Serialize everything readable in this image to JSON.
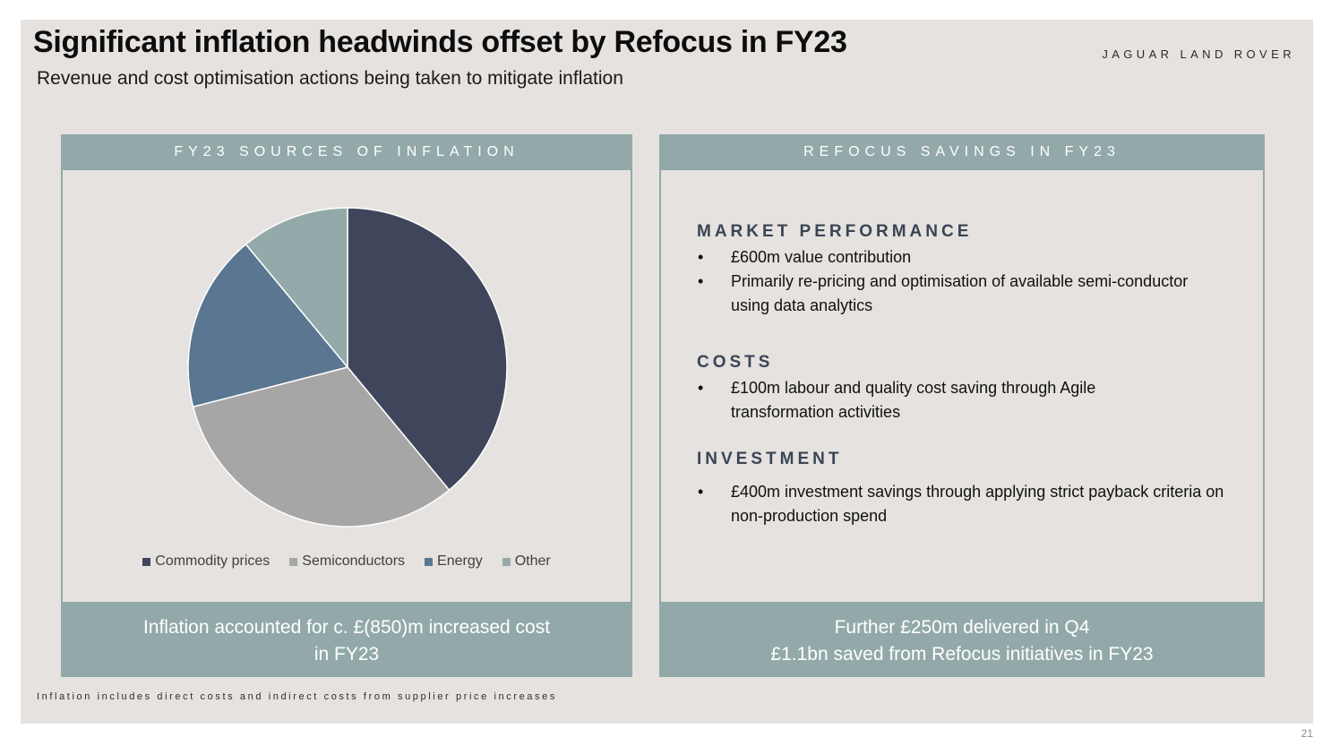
{
  "title": "Significant inflation headwinds offset by Refocus in FY23",
  "subtitle": "Revenue and cost optimisation actions being taken to mitigate inflation",
  "brand": "JAGUAR LAND ROVER",
  "left_panel": {
    "header": "FY23 SOURCES OF INFLATION",
    "footer_line1": "Inflation accounted for c. £(850)m increased cost",
    "footer_line2": "in FY23"
  },
  "chart_data": {
    "type": "pie",
    "categories": [
      "Commodity prices",
      "Semiconductors",
      "Energy",
      "Other"
    ],
    "values": [
      39,
      32,
      18,
      11
    ],
    "colors": [
      "#3f465b",
      "#a6a6a6",
      "#5a7690",
      "#94aaaa"
    ]
  },
  "right_panel": {
    "header": "REFOCUS SAVINGS IN FY23",
    "sections": [
      {
        "title": "MARKET PERFORMANCE",
        "bullets": [
          "£600m value contribution",
          "Primarily re-pricing and optimisation of available semi-conductor using data analytics"
        ]
      },
      {
        "title": "COSTS",
        "bullets": [
          "£100m labour and quality cost saving through Agile transformation activities"
        ]
      },
      {
        "title": "INVESTMENT",
        "bullets": [
          "£400m investment savings through applying strict payback criteria on non-production spend"
        ]
      }
    ],
    "footer_line1": "Further £250m delivered in Q4",
    "footer_line2": "£1.1bn saved from Refocus initiatives in FY23"
  },
  "footnote": "Inflation includes direct costs and indirect costs from supplier price increases",
  "page_number": "21"
}
